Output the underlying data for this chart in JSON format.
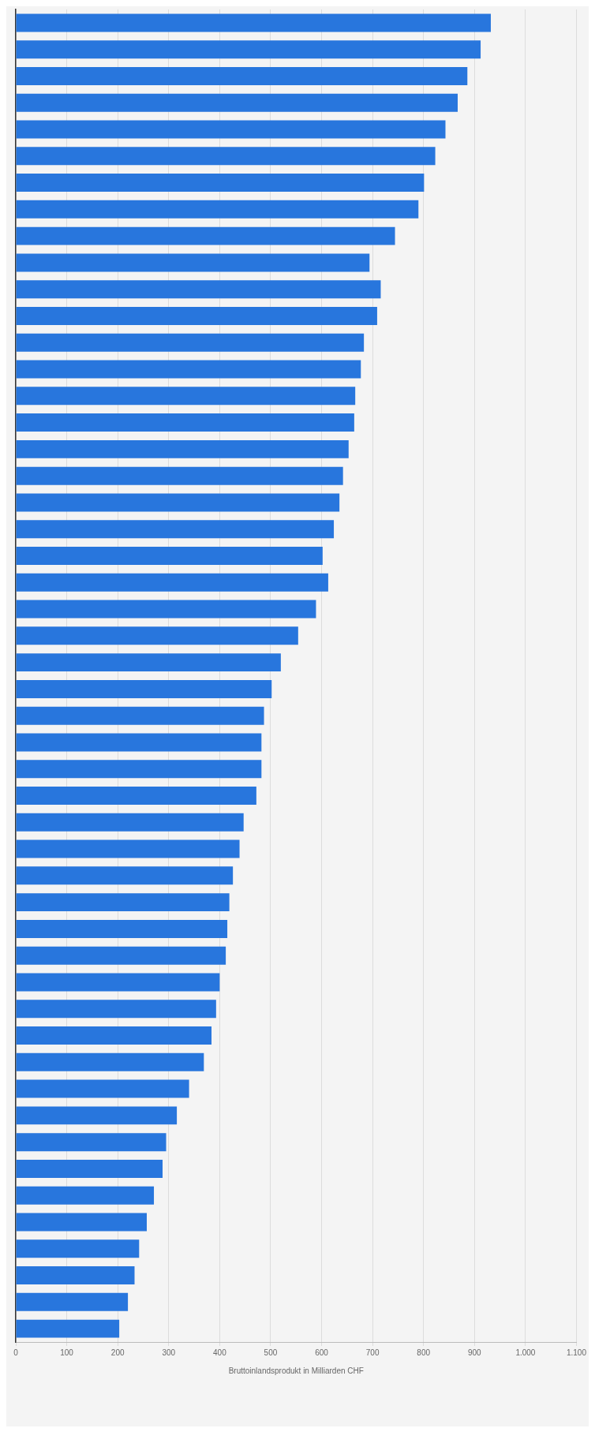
{
  "chart_data": {
    "type": "bar",
    "orientation": "horizontal",
    "xlabel": "Bruttoinlandsprodukt in Milliarden CHF",
    "categories": [
      null,
      null,
      null,
      null,
      null,
      null,
      null,
      null,
      null,
      null,
      null,
      null,
      null,
      null,
      null,
      null,
      null,
      null,
      null,
      null,
      null,
      null,
      null,
      null,
      null,
      null,
      null,
      null,
      null,
      null,
      null,
      null,
      null,
      null,
      null,
      null,
      null,
      null,
      null,
      null,
      null,
      null,
      null,
      null,
      null,
      null,
      null,
      null,
      null,
      null
    ],
    "values": [
      932,
      912,
      886,
      867,
      843,
      823,
      801,
      790,
      744,
      694,
      716,
      709,
      683,
      677,
      666,
      664,
      653,
      642,
      635,
      624,
      602,
      613,
      589,
      554,
      520,
      502,
      487,
      482,
      482,
      472,
      447,
      439,
      426,
      419,
      415,
      412,
      400,
      393,
      384,
      369,
      340,
      316,
      295,
      288,
      271,
      257,
      242,
      233,
      220,
      203
    ],
    "color": "#2876dd",
    "xlim": [
      0,
      1100
    ],
    "xticks": [
      0,
      100,
      200,
      300,
      400,
      500,
      600,
      700,
      800,
      900,
      {
        "value": 1000,
        "label": "1.000"
      },
      {
        "value": 1100,
        "label": "1.100"
      }
    ],
    "grid": "x",
    "legend": false
  }
}
